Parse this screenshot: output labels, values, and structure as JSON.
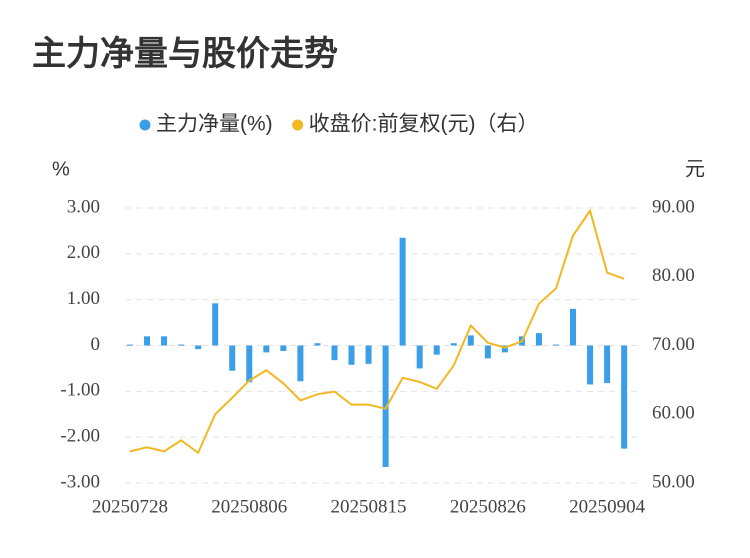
{
  "chart_data": {
    "type": "bar-line",
    "title": "主力净量与股价走势",
    "y_label": "%",
    "y2_label": "元",
    "categories": [
      "20250728",
      null,
      null,
      null,
      null,
      null,
      null,
      "20250806",
      null,
      null,
      null,
      null,
      null,
      null,
      "20250815",
      null,
      null,
      null,
      null,
      null,
      null,
      "20250826",
      null,
      null,
      null,
      null,
      null,
      null,
      "20250904",
      null
    ],
    "series": [
      {
        "name": "主力净量(%)",
        "type": "bar",
        "color": "#3a9ee8",
        "values": [
          0.02,
          0.2,
          0.2,
          0.02,
          -0.08,
          0.92,
          -0.55,
          -0.8,
          -0.15,
          -0.12,
          -0.78,
          0.05,
          -0.32,
          -0.42,
          -0.4,
          -2.65,
          2.35,
          -0.5,
          -0.2,
          0.05,
          0.22,
          -0.28,
          -0.15,
          0.2,
          0.27,
          0.02,
          0.8,
          -0.85,
          -0.82,
          -2.25
        ]
      },
      {
        "name": "收盘价:前复权(元)（右）",
        "type": "line",
        "axis": "y2",
        "color": "#f2b824",
        "values": [
          54.6,
          55.2,
          54.6,
          56.2,
          54.4,
          60.0,
          62.4,
          64.9,
          66.4,
          64.5,
          62.0,
          62.9,
          63.3,
          61.4,
          61.4,
          60.8,
          65.3,
          64.7,
          63.7,
          67.1,
          72.9,
          70.4,
          69.7,
          70.6,
          76.1,
          78.3,
          86.0,
          89.6,
          80.6,
          79.7
        ]
      }
    ],
    "ylim": [
      -3,
      3
    ],
    "yticks": [
      {
        "value": -3,
        "label": "-3.00"
      },
      {
        "value": -2,
        "label": "-2.00"
      },
      {
        "value": -1,
        "label": "-1.00"
      },
      0,
      {
        "value": 1,
        "label": "1.00"
      },
      {
        "value": 2,
        "label": "2.00"
      },
      {
        "value": 3,
        "label": "3.00"
      }
    ],
    "y2lim": [
      50,
      90
    ],
    "y2ticks": [
      {
        "value": 50,
        "label": "50.00"
      },
      {
        "value": 60,
        "label": "60.00"
      },
      {
        "value": 70,
        "label": "70.00"
      },
      {
        "value": 80,
        "label": "80.00"
      },
      {
        "value": 90,
        "label": "90.00"
      }
    ],
    "grid": true,
    "legend": "top"
  }
}
